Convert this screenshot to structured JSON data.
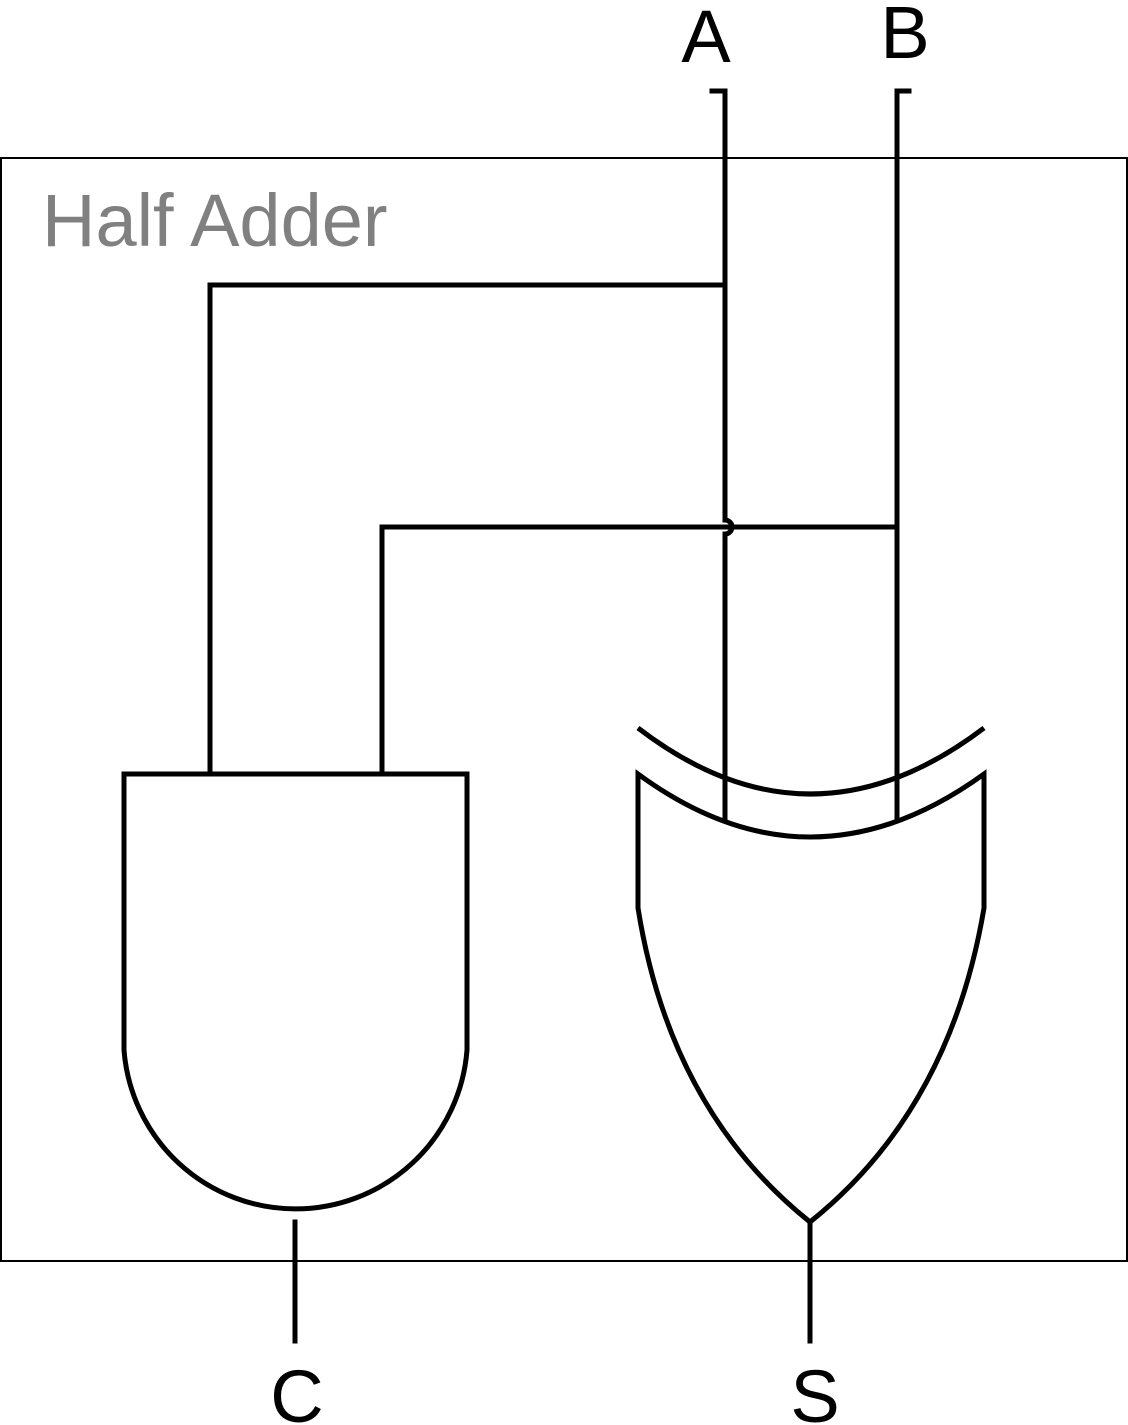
{
  "title": "Half Adder",
  "inputs": {
    "a": "A",
    "b": "B"
  },
  "outputs": {
    "carry": "C",
    "sum": "S"
  },
  "gates": [
    {
      "type": "AND",
      "inputs": [
        "A",
        "B"
      ],
      "output": "C"
    },
    {
      "type": "XOR",
      "inputs": [
        "A",
        "B"
      ],
      "output": "S"
    }
  ],
  "colors": {
    "wire": "#000000",
    "title": "#808080",
    "background": "#ffffff"
  }
}
